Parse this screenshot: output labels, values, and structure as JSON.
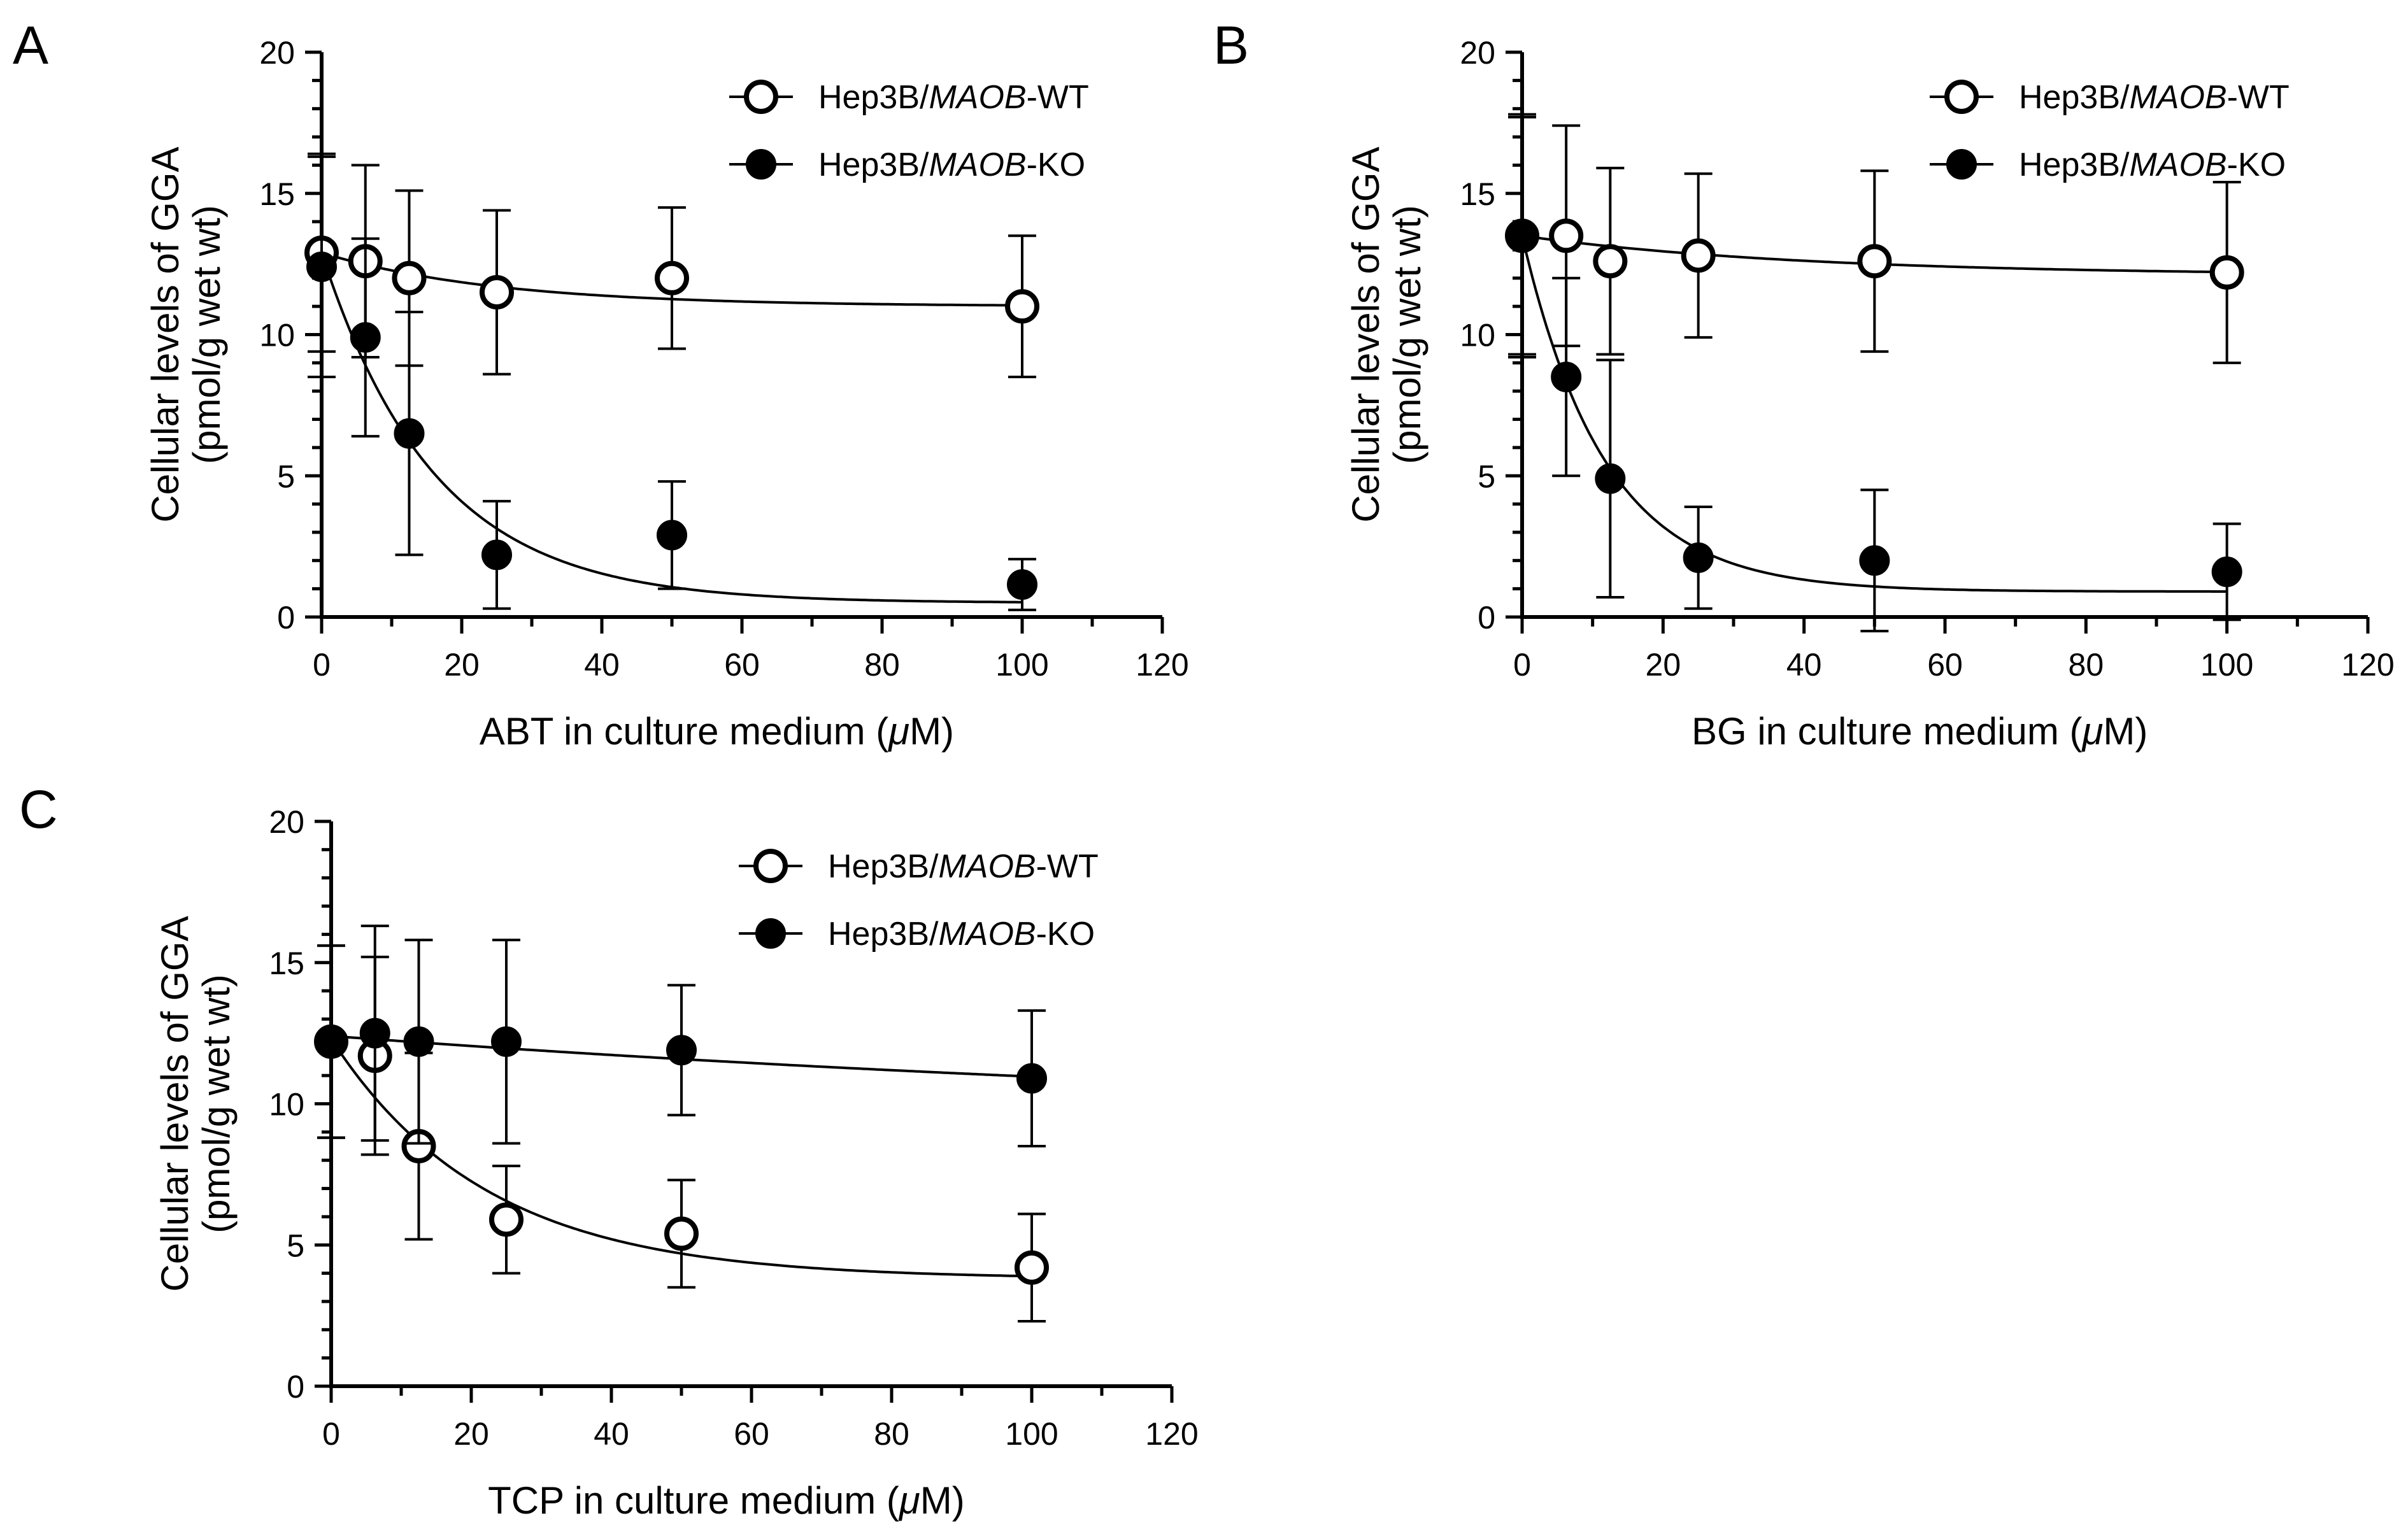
{
  "figure": {
    "colors": {
      "ink": "#000000",
      "open_marker_fill": "#ffffff",
      "background": "#ffffff"
    },
    "marker_types": {
      "open-circle": "open",
      "filled-circle": "filled"
    }
  },
  "chart_data": [
    {
      "panel": "A",
      "type": "scatter",
      "title": "",
      "xlabel_prefix": "ABT  in culture medium (",
      "xlabel_unit_italic": "μ",
      "xlabel_suffix": "M)",
      "ylabel_line1": "Cellular levels of GGA",
      "ylabel_line2": "(pmol/g wet wt)",
      "xlim": [
        0,
        120
      ],
      "ylim": [
        0,
        20
      ],
      "xticks": [
        0,
        20,
        40,
        60,
        80,
        100,
        120
      ],
      "yticks": [
        0,
        5,
        10,
        15,
        20
      ],
      "grid": false,
      "legend_position": "top-right",
      "series": [
        {
          "name": "Hep3B/MAOB-WT",
          "name_prefix": "Hep3B/",
          "name_italic": "MAOB",
          "name_suffix": "-WT",
          "marker": "open-circle",
          "x": [
            0,
            6.25,
            12.5,
            25,
            50,
            100
          ],
          "y": [
            12.9,
            12.6,
            12.0,
            11.5,
            12.0,
            11.0
          ],
          "yerr": [
            3.5,
            3.4,
            3.1,
            2.9,
            2.5,
            2.5
          ],
          "fit": {
            "y0": 12.9,
            "plateau": 11.0,
            "k": 0.04
          }
        },
        {
          "name": "Hep3B/MAOB-KO",
          "name_prefix": "Hep3B/",
          "name_italic": "MAOB",
          "name_suffix": "-KO",
          "marker": "filled-circle",
          "x": [
            0,
            6.25,
            12.5,
            25,
            50,
            100
          ],
          "y": [
            12.4,
            9.9,
            6.5,
            2.2,
            2.9,
            1.15
          ],
          "yerr": [
            3.9,
            3.5,
            4.3,
            1.9,
            1.9,
            0.9
          ],
          "fit": {
            "y0": 12.9,
            "plateau": 0.5,
            "k": 0.062
          }
        }
      ]
    },
    {
      "panel": "B",
      "type": "scatter",
      "title": "",
      "xlabel_prefix": "BG  in culture medium (",
      "xlabel_unit_italic": "μ",
      "xlabel_suffix": "M)",
      "ylabel_line1": "Cellular levels of GGA",
      "ylabel_line2": "(pmol/g wet wt)",
      "xlim": [
        0,
        120
      ],
      "ylim": [
        0,
        20
      ],
      "xticks": [
        0,
        20,
        40,
        60,
        80,
        100,
        120
      ],
      "yticks": [
        0,
        5,
        10,
        15,
        20
      ],
      "grid": false,
      "legend_position": "top-right",
      "series": [
        {
          "name": "Hep3B/MAOB-WT",
          "name_prefix": "Hep3B/",
          "name_italic": "MAOB",
          "name_suffix": "-WT",
          "marker": "open-circle",
          "x": [
            0,
            6.25,
            12.5,
            25,
            50,
            100
          ],
          "y": [
            13.5,
            13.5,
            12.6,
            12.8,
            12.6,
            12.2
          ],
          "yerr": [
            4.3,
            3.9,
            3.3,
            2.9,
            3.2,
            3.2
          ],
          "fit": {
            "y0": 13.5,
            "plateau": 12.1,
            "k": 0.025
          }
        },
        {
          "name": "Hep3B/MAOB-KO",
          "name_prefix": "Hep3B/",
          "name_italic": "MAOB",
          "name_suffix": "-KO",
          "marker": "filled-circle",
          "x": [
            0,
            6.25,
            12.5,
            25,
            50,
            100
          ],
          "y": [
            13.5,
            8.5,
            4.9,
            2.1,
            2.0,
            1.6
          ],
          "yerr": [
            4.2,
            3.5,
            4.2,
            1.8,
            2.5,
            1.7
          ],
          "fit": {
            "y0": 13.5,
            "plateau": 0.9,
            "k": 0.085
          }
        }
      ]
    },
    {
      "panel": "C",
      "type": "scatter",
      "title": "",
      "xlabel_prefix": "TCP  in culture medium (",
      "xlabel_unit_italic": "μ",
      "xlabel_suffix": "M)",
      "ylabel_line1": "Cellular levels of GGA",
      "ylabel_line2": "(pmol/g wet wt)",
      "xlim": [
        0,
        120
      ],
      "ylim": [
        0,
        20
      ],
      "xticks": [
        0,
        20,
        40,
        60,
        80,
        100,
        120
      ],
      "yticks": [
        0,
        5,
        10,
        15,
        20
      ],
      "grid": false,
      "legend_position": "top-right",
      "series": [
        {
          "name": "Hep3B/MAOB-WT",
          "name_prefix": "Hep3B/",
          "name_italic": "MAOB",
          "name_suffix": "-WT",
          "marker": "open-circle",
          "x": [
            0,
            6.25,
            12.5,
            25,
            50,
            100
          ],
          "y": [
            12.2,
            11.7,
            8.5,
            5.9,
            5.4,
            4.2
          ],
          "yerr": [
            3.4,
            3.5,
            3.3,
            1.9,
            1.9,
            1.9
          ],
          "fit": {
            "y0": 12.3,
            "plateau": 3.8,
            "k": 0.045
          }
        },
        {
          "name": "Hep3B/MAOB-KO",
          "name_prefix": "Hep3B/",
          "name_italic": "MAOB",
          "name_suffix": "-KO",
          "marker": "filled-circle",
          "x": [
            0,
            6.25,
            12.5,
            25,
            50,
            100
          ],
          "y": [
            12.2,
            12.5,
            12.2,
            12.2,
            11.9,
            10.9
          ],
          "yerr": [
            3.4,
            3.8,
            3.6,
            3.6,
            2.3,
            2.4
          ],
          "fit": {
            "y0": 12.4,
            "plateau": 9.0,
            "k": 0.0055
          }
        }
      ]
    }
  ]
}
